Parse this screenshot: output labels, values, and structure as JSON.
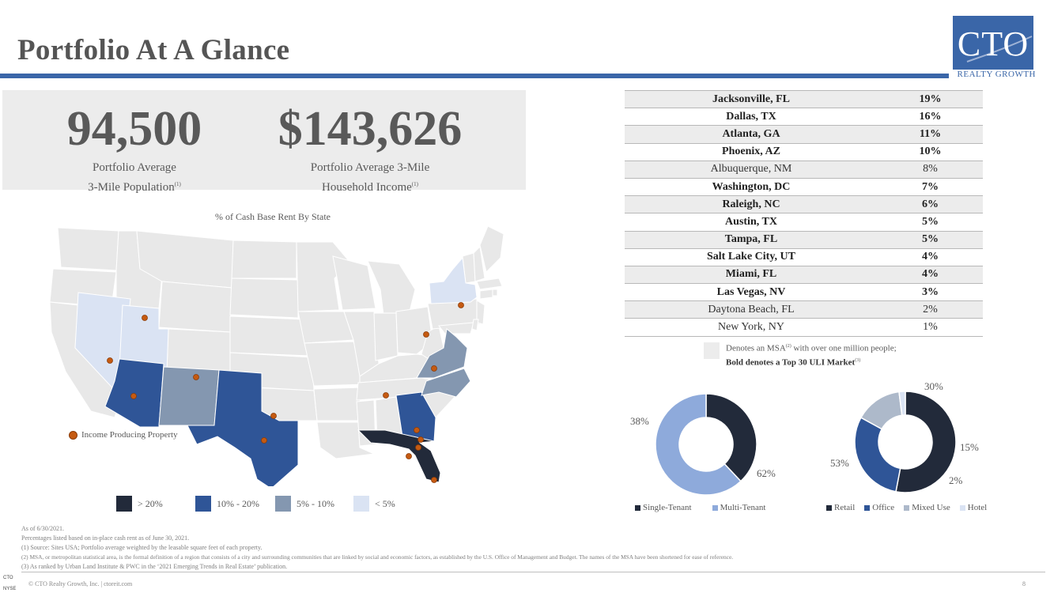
{
  "header": {
    "title": "Portfolio At A Glance",
    "logo_text": "CTO",
    "logo_sub": "REALTY GROWTH"
  },
  "stats": {
    "population": {
      "value": "94,500",
      "line1": "Portfolio Average",
      "line2": "3-Mile Population",
      "note": "(1)"
    },
    "income": {
      "value": "$143,626",
      "line1": "Portfolio Average 3-Mile",
      "line2": "Household Income",
      "note": "(1)"
    }
  },
  "map": {
    "title": "% of Cash Base Rent By State",
    "property_legend": "Income Producing Property",
    "scale": [
      {
        "label": "> 20%",
        "color": "#222a3a"
      },
      {
        "label": "10% - 20%",
        "color": "#2f5597"
      },
      {
        "label": "5% - 10%",
        "color": "#8497b0"
      },
      {
        "label": "< 5%",
        "color": "#dae3f3"
      }
    ]
  },
  "msa_table": [
    {
      "city": "Jacksonville, FL",
      "pct": "19%",
      "top30": true
    },
    {
      "city": "Dallas, TX",
      "pct": "16%",
      "top30": true
    },
    {
      "city": "Atlanta, GA",
      "pct": "11%",
      "top30": true
    },
    {
      "city": "Phoenix, AZ",
      "pct": "10%",
      "top30": true
    },
    {
      "city": "Albuquerque, NM",
      "pct": "8%",
      "top30": false
    },
    {
      "city": "Washington, DC",
      "pct": "7%",
      "top30": true
    },
    {
      "city": "Raleigh, NC",
      "pct": "6%",
      "top30": true
    },
    {
      "city": "Austin, TX",
      "pct": "5%",
      "top30": true
    },
    {
      "city": "Tampa, FL",
      "pct": "5%",
      "top30": true
    },
    {
      "city": "Salt Lake City, UT",
      "pct": "4%",
      "top30": true
    },
    {
      "city": "Miami, FL",
      "pct": "4%",
      "top30": true
    },
    {
      "city": "Las Vegas, NV",
      "pct": "3%",
      "top30": true
    },
    {
      "city": "Daytona Beach, FL",
      "pct": "2%",
      "top30": false
    },
    {
      "city": "New York, NY",
      "pct": "1%",
      "top30": false
    }
  ],
  "msa_note": {
    "line1_pre": "Denotes an MSA",
    "line1_sup": "(2)",
    "line1_post": " with over one million people;",
    "line2": "Bold denotes a Top 30 ULI Market",
    "line2_sup": "(3)"
  },
  "chart_data": [
    {
      "type": "pie",
      "donut": true,
      "categories": [
        "Single-Tenant",
        "Multi-Tenant"
      ],
      "values": [
        38,
        62
      ],
      "labels": [
        "38%",
        "62%"
      ],
      "colors": [
        "#222a3a",
        "#8eaadb"
      ]
    },
    {
      "type": "pie",
      "donut": true,
      "categories": [
        "Retail",
        "Office",
        "Mixed Use",
        "Hotel"
      ],
      "values": [
        53,
        30,
        15,
        2
      ],
      "labels": [
        "53%",
        "30%",
        "15%",
        "2%"
      ],
      "colors": [
        "#222a3a",
        "#2f5597",
        "#adb9ca",
        "#dae3f3"
      ]
    }
  ],
  "footnotes": [
    "As of 6/30/2021.",
    "Percentages listed based on in-place cash rent as of June 30, 2021.",
    "(1)    Source: Sites USA; Portfolio average weighted by the leasable square feet of each property.",
    "(2)    MSA, or metropolitan statistical area, is the formal definition of a region that consists of a city and surrounding communities that are linked by social and economic factors, as established by the U.S. Office of Management and Budget. The names of the MSA have been shortened for ease of reference.",
    "(3)    As ranked by Urban Land Institute & PWC in the ‘2021 Emerging Trends in Real Estate’ publication."
  ],
  "footer": {
    "copyright": "© CTO Realty Growth, Inc. | ctoreit.com",
    "page": "8",
    "ticker_top": "CTO",
    "ticker_bottom": "NYSE"
  }
}
